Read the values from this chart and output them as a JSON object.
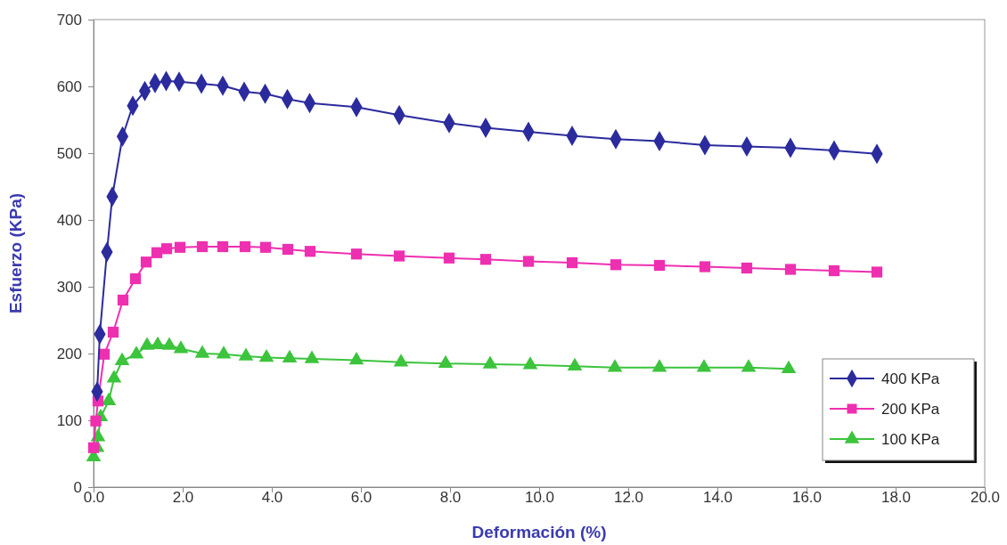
{
  "chart_data": {
    "type": "line",
    "xlabel": "Deformación (%)",
    "ylabel": "Esfuerzo (KPa)",
    "xlim": [
      0,
      20
    ],
    "ylim": [
      0,
      700
    ],
    "xticks": [
      {
        "value": 0,
        "label": "0.0"
      },
      {
        "value": 2,
        "label": "2.0"
      },
      {
        "value": 4,
        "label": "4.0"
      },
      {
        "value": 6,
        "label": "6.0"
      },
      {
        "value": 8,
        "label": "8.0"
      },
      {
        "value": 10,
        "label": "10.0"
      },
      {
        "value": 12,
        "label": "12.0"
      },
      {
        "value": 14,
        "label": "14.0"
      },
      {
        "value": 16,
        "label": "16.0"
      },
      {
        "value": 18,
        "label": "18.0"
      },
      {
        "value": 20,
        "label": "20.0"
      }
    ],
    "yticks": [
      0,
      100,
      200,
      300,
      400,
      500,
      600,
      700
    ],
    "grid": false,
    "legend": "bottom right",
    "line_style": "solid",
    "series": [
      {
        "name": "400 KPa",
        "color": "#2b2b9e",
        "marker": "diamond",
        "x": [
          0.08,
          0.14,
          0.3,
          0.42,
          0.65,
          0.88,
          1.15,
          1.38,
          1.63,
          1.92,
          2.42,
          2.9,
          3.38,
          3.85,
          4.35,
          4.85,
          5.9,
          6.86,
          7.98,
          8.8,
          9.76,
          10.74,
          11.72,
          12.7,
          13.72,
          14.66,
          15.64,
          16.62,
          17.58
        ],
        "values": [
          143,
          229,
          352,
          435,
          525,
          571,
          593,
          605,
          608,
          607,
          604,
          601,
          592,
          589,
          581,
          575,
          569,
          557,
          545,
          538,
          532,
          526,
          521,
          518,
          512,
          510,
          508,
          504,
          499
        ]
      },
      {
        "name": "200 KPa",
        "color": "#ee2fb0",
        "marker": "square",
        "x": [
          0.0,
          0.05,
          0.1,
          0.24,
          0.44,
          0.66,
          0.94,
          1.18,
          1.42,
          1.64,
          1.94,
          2.44,
          2.9,
          3.4,
          3.86,
          4.36,
          4.86,
          5.9,
          6.86,
          7.98,
          8.8,
          9.76,
          10.74,
          11.72,
          12.7,
          13.72,
          14.66,
          15.64,
          16.62,
          17.58
        ],
        "values": [
          59,
          99,
          129,
          199,
          232,
          280,
          312,
          337,
          351,
          357,
          359,
          360,
          360,
          360,
          359,
          356,
          353,
          349,
          346,
          343,
          341,
          338,
          336,
          333,
          332,
          330,
          328,
          326,
          324,
          322
        ]
      },
      {
        "name": "100 KPa",
        "color": "#3cc43c",
        "marker": "triangle",
        "x": [
          0.0,
          0.08,
          0.1,
          0.16,
          0.34,
          0.46,
          0.64,
          0.96,
          1.2,
          1.44,
          1.7,
          1.96,
          2.44,
          2.92,
          3.42,
          3.88,
          4.4,
          4.9,
          5.9,
          6.9,
          7.9,
          8.9,
          9.8,
          10.8,
          11.7,
          12.7,
          13.7,
          14.7,
          15.6
        ],
        "values": [
          45,
          59,
          75,
          105,
          129,
          163,
          189,
          199,
          212,
          213,
          212,
          207,
          200,
          199,
          196,
          194,
          193,
          192,
          190,
          187,
          185,
          184,
          183,
          181,
          179,
          179,
          179,
          179,
          177
        ]
      }
    ]
  }
}
